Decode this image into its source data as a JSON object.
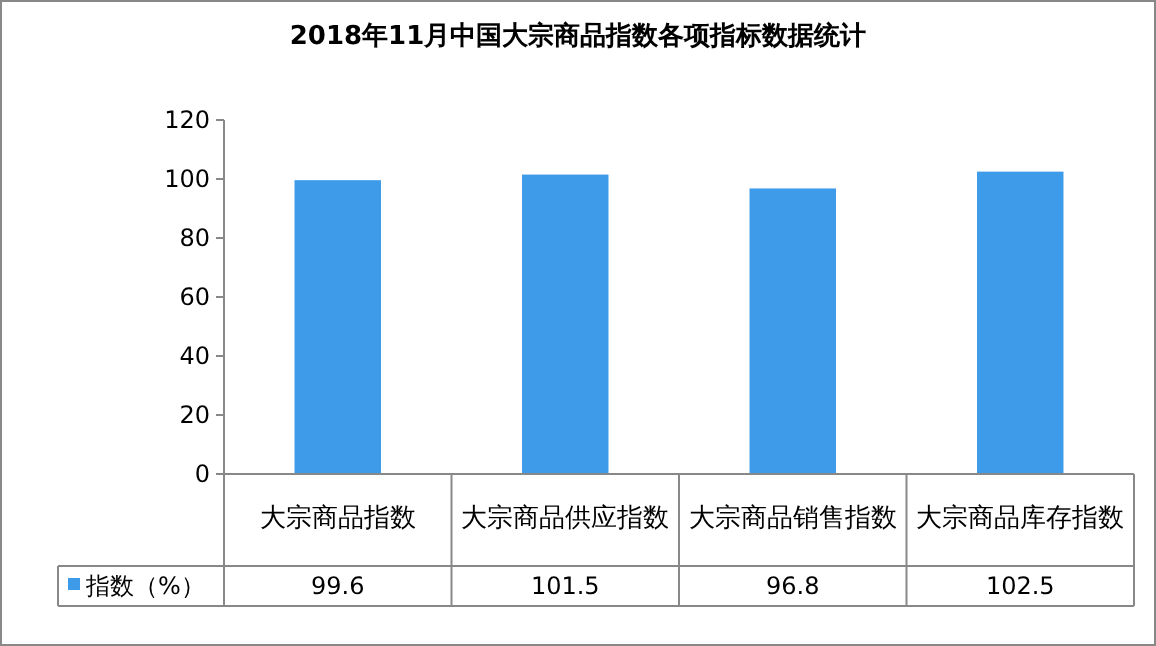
{
  "chart_data": {
    "type": "bar",
    "title": "2018年11月中国大宗商品指数各项指标数据统计",
    "categories": [
      "大宗商品指数",
      "大宗商品供应指数",
      "大宗商品销售指数",
      "大宗商品库存指数"
    ],
    "series": [
      {
        "name": "指数（%）",
        "color": "#3d9be9",
        "values": [
          99.6,
          101.5,
          96.8,
          102.5
        ]
      }
    ],
    "ylim": [
      0,
      120
    ],
    "yticks": [
      0,
      20,
      40,
      60,
      80,
      100,
      120
    ],
    "data_labels": true,
    "grid": false,
    "legend": "bottom left"
  }
}
